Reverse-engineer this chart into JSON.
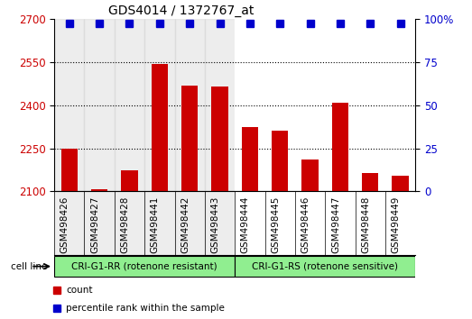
{
  "title": "GDS4014 / 1372767_at",
  "categories": [
    "GSM498426",
    "GSM498427",
    "GSM498428",
    "GSM498441",
    "GSM498442",
    "GSM498443",
    "GSM498444",
    "GSM498445",
    "GSM498446",
    "GSM498447",
    "GSM498448",
    "GSM498449"
  ],
  "bar_values": [
    2248,
    2107,
    2175,
    2543,
    2468,
    2465,
    2323,
    2310,
    2210,
    2408,
    2163,
    2155
  ],
  "percentile_values": [
    100,
    100,
    100,
    100,
    100,
    100,
    100,
    100,
    100,
    100,
    100,
    100
  ],
  "bar_color": "#cc0000",
  "dot_color": "#0000cc",
  "ylim_left": [
    2100,
    2700
  ],
  "ylim_right": [
    0,
    100
  ],
  "yticks_left": [
    2100,
    2250,
    2400,
    2550,
    2700
  ],
  "yticks_right": [
    0,
    25,
    50,
    75,
    100
  ],
  "ytick_labels_right": [
    "0",
    "25",
    "50",
    "75",
    "100%"
  ],
  "grid_values": [
    2250,
    2400,
    2550
  ],
  "group1_label": "CRI-G1-RR (rotenone resistant)",
  "group2_label": "CRI-G1-RS (rotenone sensitive)",
  "group1_indices": [
    0,
    1,
    2,
    3,
    4,
    5
  ],
  "group2_indices": [
    6,
    7,
    8,
    9,
    10,
    11
  ],
  "cell_line_label": "cell line",
  "legend_count_label": "count",
  "legend_percentile_label": "percentile rank within the sample",
  "bar_width": 0.55,
  "group_bg_color_bar": "#d3d3d3",
  "group_bg_color_green": "#90ee90",
  "title_fontsize": 10,
  "tick_label_fontsize": 7.5,
  "axis_label_color_left": "#cc0000",
  "axis_label_color_right": "#0000cc",
  "dot_size": 6,
  "bg_white": "#ffffff"
}
